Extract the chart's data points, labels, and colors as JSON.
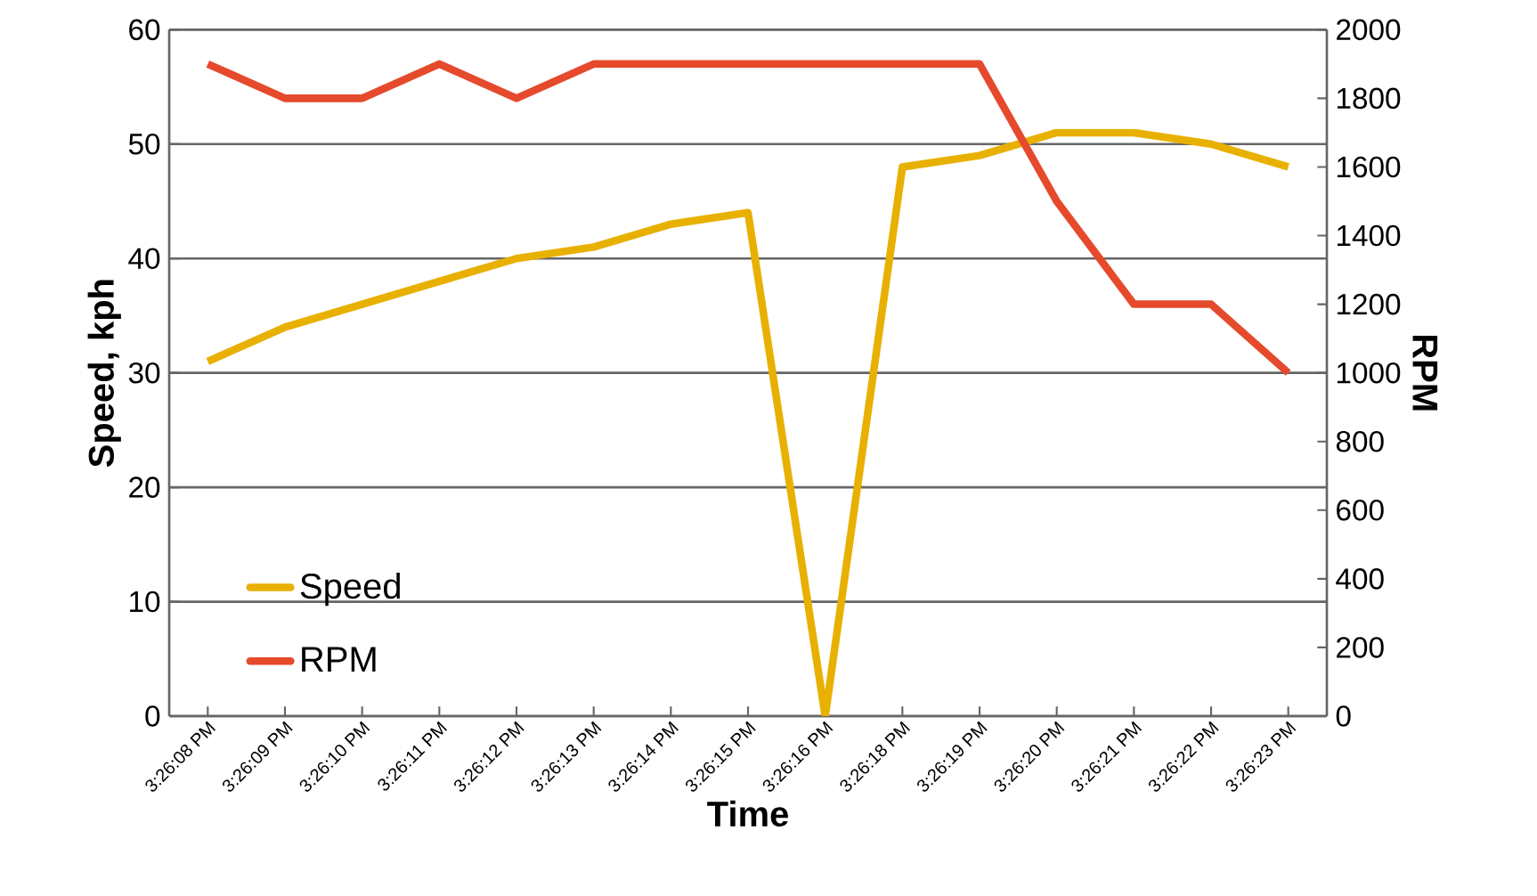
{
  "chart_data": {
    "type": "line",
    "xlabel": "Time",
    "ylabel": "Speed, kph",
    "y2label": "RPM",
    "categories": [
      "3:26:08 PM",
      "3:26:09 PM",
      "3:26:10 PM",
      "3:26:11 PM",
      "3:26:12 PM",
      "3:26:13 PM",
      "3:26:14 PM",
      "3:26:15 PM",
      "3:26:16 PM",
      "3:26:18 PM",
      "3:26:19 PM",
      "3:26:20 PM",
      "3:26:21 PM",
      "3:26:22 PM",
      "3:26:23 PM"
    ],
    "series": [
      {
        "name": "Speed",
        "color": "#e8b000",
        "values": [
          31,
          34,
          36,
          38,
          40,
          41,
          43,
          44,
          0,
          48,
          49,
          51,
          51,
          50,
          48
        ]
      },
      {
        "name": "RPM",
        "color": "#e64a2c",
        "axis": "y2",
        "values": [
          1900,
          1800,
          1800,
          1900,
          1800,
          1900,
          1900,
          1900,
          1900,
          1900,
          1900,
          1500,
          1200,
          1200,
          1000
        ]
      }
    ],
    "ylim": [
      0,
      60
    ],
    "yticks": [
      0,
      10,
      20,
      30,
      40,
      50,
      60
    ],
    "y2lim": [
      0,
      2000
    ],
    "y2ticks": [
      0,
      200,
      400,
      600,
      800,
      1000,
      1200,
      1400,
      1600,
      1800,
      2000
    ],
    "grid": "y",
    "legend": "bottom left"
  }
}
